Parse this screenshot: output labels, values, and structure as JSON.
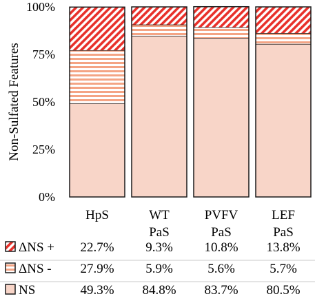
{
  "chart_data": {
    "type": "bar",
    "stacked": true,
    "normalized": true,
    "ylabel": "Non-Sulfated Features",
    "ylim": [
      0,
      100
    ],
    "yticks": [
      "0%",
      "25%",
      "50%",
      "75%",
      "100%"
    ],
    "categories": [
      [
        "HpS"
      ],
      [
        "WT",
        "PaS"
      ],
      [
        "PVFV",
        "PaS"
      ],
      [
        "LEF",
        "PaS"
      ]
    ],
    "series": [
      {
        "name": "NS",
        "legend_label": "NS",
        "pattern": "solid",
        "values": [
          49.3,
          84.8,
          83.7,
          80.5
        ],
        "labels": [
          "49.3%",
          "84.8%",
          "83.7%",
          "80.5%"
        ]
      },
      {
        "name": "ΔNS -",
        "legend_label": "ΔNS -",
        "pattern": "horizontal-stripes",
        "values": [
          27.9,
          5.9,
          5.6,
          5.7
        ],
        "labels": [
          "27.9%",
          "5.9%",
          "5.6%",
          "5.7%"
        ]
      },
      {
        "name": "ΔNS +",
        "legend_label": "ΔNS +",
        "pattern": "diagonal-stripes",
        "values": [
          22.7,
          9.3,
          10.8,
          13.8
        ],
        "labels": [
          "22.7%",
          "9.3%",
          "10.8%",
          "13.8%"
        ]
      }
    ],
    "table_row_order": [
      2,
      1,
      0
    ],
    "grid": false,
    "legend_placement": "data-table-below"
  },
  "colors": {
    "ns_fill": "#f8d5c8",
    "stripe_red": "#e8302a",
    "stripe_peach": "#f4a484",
    "outline": "#1a1a1a",
    "divider": "#c8c8c8"
  }
}
